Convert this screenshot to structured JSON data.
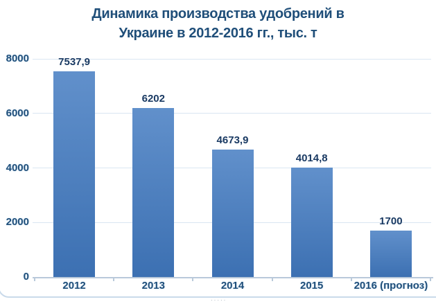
{
  "chart_data": {
    "type": "bar",
    "title": "Динамика производства удобрений в Украине в 2012-2016 гг., тыс. т",
    "title_lines": [
      "Динамика производства удобрений в",
      "Украине в 2012-2016 гг., тыс. т"
    ],
    "categories": [
      "2012",
      "2013",
      "2014",
      "2015",
      "2016 (прогноз)"
    ],
    "values": [
      7537.9,
      6202,
      4673.9,
      4014.8,
      1700
    ],
    "value_labels": [
      "7537,9",
      "6202",
      "4673,9",
      "4014,8",
      "1700"
    ],
    "xlabel": "",
    "ylabel": "",
    "ylim": [
      0,
      8000
    ],
    "ytick_step": 2000,
    "ytick_labels": [
      "0",
      "2000",
      "4000",
      "6000",
      "8000"
    ],
    "grid": true,
    "legend": "none",
    "colors": {
      "title": "#1F4E79",
      "axis_labels": "#1F4E79",
      "data_labels": "#1A3A63",
      "bar_gradient_top": "#6190CB",
      "bar_gradient_bottom": "#3C70B2",
      "gridline": "#DAE6F2",
      "axis_line": "#B9C9DA",
      "frame_border": "#C9DAEA"
    }
  },
  "footer": {
    "mark": "·····"
  }
}
